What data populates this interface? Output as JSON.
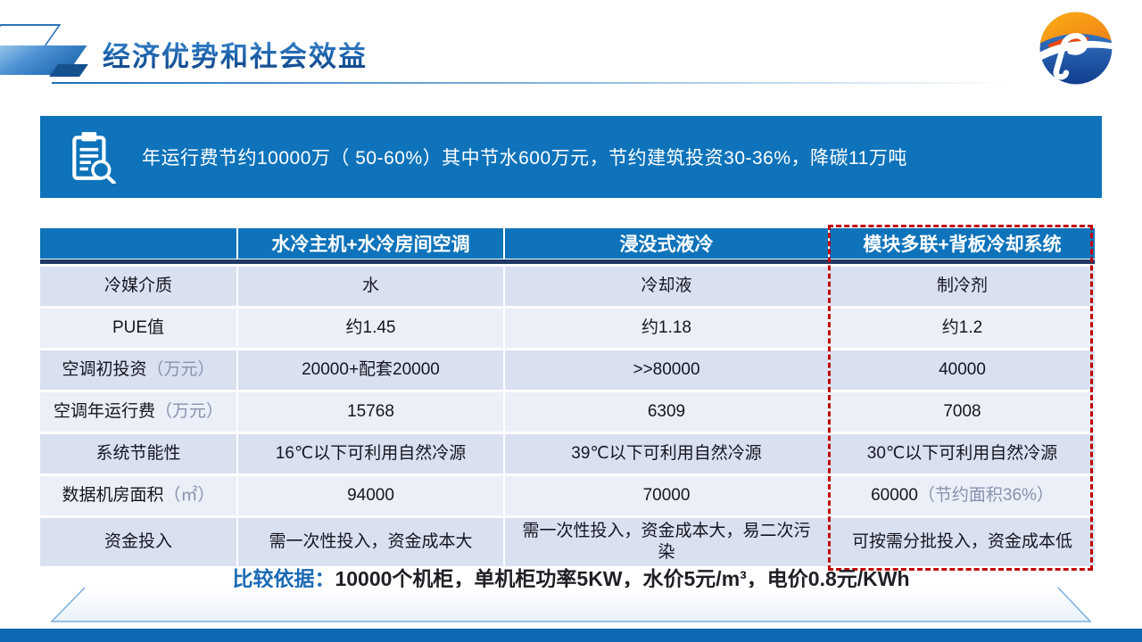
{
  "header": {
    "title": "经济优势和社会效益"
  },
  "summary_banner": {
    "icon": "clipboard-search-icon",
    "text": "年运行费节约10000万（ 50-60%）其中节水600万元，节约建筑投资30-36%，降碳11万吨"
  },
  "comparison_table": {
    "columns": [
      "",
      "水冷主机+水冷房间空调",
      "浸没式液冷",
      "模块多联+背板冷却系统"
    ],
    "highlighted_column_index": 3,
    "rows": [
      {
        "label": "冷媒介质",
        "unit": "",
        "values": [
          "水",
          "冷却液",
          "制冷剂"
        ]
      },
      {
        "label": "PUE值",
        "unit": "",
        "values": [
          "约1.45",
          "约1.18",
          "约1.2"
        ]
      },
      {
        "label": "空调初投资",
        "unit": "（万元）",
        "values": [
          "20000+配套20000",
          ">>80000",
          "40000"
        ]
      },
      {
        "label": "空调年运行费",
        "unit": "（万元）",
        "values": [
          "15768",
          "6309",
          "7008"
        ]
      },
      {
        "label": "系统节能性",
        "unit": "",
        "values": [
          "16℃以下可利用自然冷源",
          "39℃以下可利用自然冷源",
          "30℃以下可利用自然冷源"
        ]
      },
      {
        "label": "数据机房面积",
        "unit": "（㎡）",
        "values": [
          "94000",
          "70000",
          {
            "text": "60000",
            "note": "（节约面积36%）"
          }
        ]
      },
      {
        "label": "资金投入",
        "unit": "",
        "values": [
          "需一次性投入，资金成本大",
          "需一次性投入，资金成本大，易二次污染",
          "可按需分批投入，资金成本低"
        ]
      }
    ]
  },
  "footnote": {
    "label": "比较依据：",
    "text": "10000个机柜，单机柜功率5KW，水价5元/m³，电价0.8元/KWh"
  },
  "icons": {
    "banner": "clipboard-search-icon",
    "top_right": "jp-company-logo"
  },
  "colors": {
    "primary_blue": "#0e73ba",
    "header_divider_navy": "#1f3864",
    "row_shade_dark": "#d9e1f1",
    "row_shade_light": "#ebeff8",
    "highlight_border_red": "#c00000",
    "title_blue": "#1b6ab4",
    "bottom_bar_blue": "#0f68b3",
    "logo_orange": "#f9a31a",
    "logo_blue": "#1c4f9e"
  }
}
